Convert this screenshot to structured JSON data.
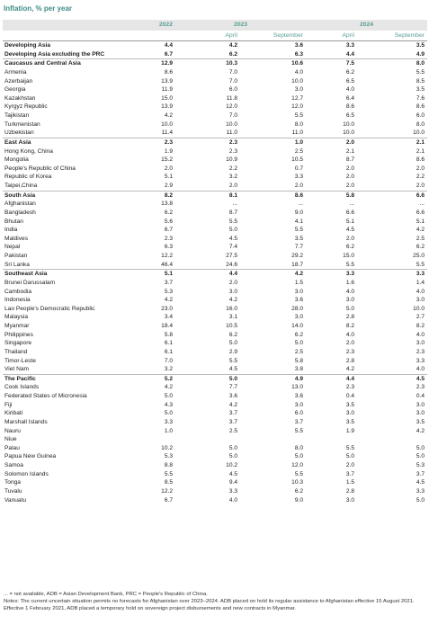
{
  "title": "Inflation, % per year",
  "header": {
    "years": [
      "2022",
      "2023",
      "2024"
    ],
    "sub": [
      "April",
      "September",
      "April",
      "September"
    ]
  },
  "aggregates": [
    {
      "name": "Developing Asia",
      "values": [
        "4.4",
        "4.2",
        "3.6",
        "3.3",
        "3.5"
      ]
    },
    {
      "name": "Developing Asia excluding the PRC",
      "values": [
        "6.7",
        "6.2",
        "6.3",
        "4.4",
        "4.9"
      ]
    }
  ],
  "sections": [
    {
      "name": "Caucasus and Central Asia",
      "values": [
        "12.9",
        "10.3",
        "10.6",
        "7.5",
        "8.0"
      ],
      "rows": [
        {
          "name": "Armenia",
          "values": [
            "8.6",
            "7.0",
            "4.0",
            "6.2",
            "5.5"
          ]
        },
        {
          "name": "Azerbaijan",
          "values": [
            "13.9",
            "7.0",
            "10.0",
            "6.5",
            "8.5"
          ]
        },
        {
          "name": "Georgia",
          "values": [
            "11.9",
            "6.0",
            "3.0",
            "4.0",
            "3.5"
          ]
        },
        {
          "name": "Kazakhstan",
          "values": [
            "15.0",
            "11.8",
            "12.7",
            "6.4",
            "7.6"
          ]
        },
        {
          "name": "Kyrgyz Republic",
          "values": [
            "13.9",
            "12.0",
            "12.0",
            "8.6",
            "8.6"
          ]
        },
        {
          "name": "Tajikistan",
          "values": [
            "4.2",
            "7.0",
            "5.5",
            "6.5",
            "6.0"
          ]
        },
        {
          "name": "Turkmenistan",
          "values": [
            "10.0",
            "10.0",
            "8.0",
            "10.0",
            "8.0"
          ]
        },
        {
          "name": "Uzbekistan",
          "values": [
            "11.4",
            "11.0",
            "11.0",
            "10.0",
            "10.0"
          ]
        }
      ]
    },
    {
      "name": "East Asia",
      "values": [
        "2.3",
        "2.3",
        "1.0",
        "2.0",
        "2.1"
      ],
      "rows": [
        {
          "name": "Hong Kong, China",
          "values": [
            "1.9",
            "2.3",
            "2.5",
            "2.1",
            "2.1"
          ]
        },
        {
          "name": "Mongolia",
          "values": [
            "15.2",
            "10.9",
            "10.5",
            "8.7",
            "8.6"
          ]
        },
        {
          "name": "People's Republic of China",
          "values": [
            "2.0",
            "2.2",
            "0.7",
            "2.0",
            "2.0"
          ]
        },
        {
          "name": "Republic of Korea",
          "values": [
            "5.1",
            "3.2",
            "3.3",
            "2.0",
            "2.2"
          ]
        },
        {
          "name": "Taipei,China",
          "values": [
            "2.9",
            "2.0",
            "2.0",
            "2.0",
            "2.0"
          ]
        }
      ]
    },
    {
      "name": "South Asia",
      "values": [
        "8.2",
        "8.1",
        "8.6",
        "5.8",
        "6.6"
      ],
      "rows": [
        {
          "name": "Afghanistan",
          "values": [
            "13.8",
            "...",
            "...",
            "...",
            "..."
          ]
        },
        {
          "name": "Bangladesh",
          "values": [
            "6.2",
            "8.7",
            "9.0",
            "6.6",
            "6.6"
          ]
        },
        {
          "name": "Bhutan",
          "values": [
            "5.6",
            "5.5",
            "4.1",
            "5.1",
            "5.1"
          ]
        },
        {
          "name": "India",
          "values": [
            "6.7",
            "5.0",
            "5.5",
            "4.5",
            "4.2"
          ]
        },
        {
          "name": "Maldives",
          "values": [
            "2.3",
            "4.5",
            "3.5",
            "2.0",
            "2.5"
          ]
        },
        {
          "name": "Nepal",
          "values": [
            "6.3",
            "7.4",
            "7.7",
            "6.2",
            "6.2"
          ]
        },
        {
          "name": "Pakistan",
          "values": [
            "12.2",
            "27.5",
            "29.2",
            "15.0",
            "25.0"
          ]
        },
        {
          "name": "Sri Lanka",
          "values": [
            "46.4",
            "24.6",
            "18.7",
            "5.5",
            "5.5"
          ]
        }
      ]
    },
    {
      "name": "Southeast Asia",
      "values": [
        "5.1",
        "4.4",
        "4.2",
        "3.3",
        "3.3"
      ],
      "rows": [
        {
          "name": "Brunei Darussalam",
          "values": [
            "3.7",
            "2.0",
            "1.5",
            "1.6",
            "1.4"
          ]
        },
        {
          "name": "Cambodia",
          "values": [
            "5.3",
            "3.0",
            "3.0",
            "4.0",
            "4.0"
          ]
        },
        {
          "name": "Indonesia",
          "values": [
            "4.2",
            "4.2",
            "3.6",
            "3.0",
            "3.0"
          ]
        },
        {
          "name": "Lao People's Democratic Republic",
          "values": [
            "23.0",
            "16.0",
            "28.0",
            "5.0",
            "10.0"
          ]
        },
        {
          "name": "Malaysia",
          "values": [
            "3.4",
            "3.1",
            "3.0",
            "2.8",
            "2.7"
          ]
        },
        {
          "name": "Myanmar",
          "values": [
            "18.4",
            "10.5",
            "14.0",
            "8.2",
            "8.2"
          ]
        },
        {
          "name": "Philippines",
          "values": [
            "5.8",
            "6.2",
            "6.2",
            "4.0",
            "4.0"
          ]
        },
        {
          "name": "Singapore",
          "values": [
            "6.1",
            "5.0",
            "5.0",
            "2.0",
            "3.0"
          ]
        },
        {
          "name": "Thailand",
          "values": [
            "6.1",
            "2.9",
            "2.5",
            "2.3",
            "2.3"
          ]
        },
        {
          "name": "Timor-Leste",
          "values": [
            "7.0",
            "5.5",
            "5.8",
            "2.8",
            "3.3"
          ]
        },
        {
          "name": "Viet Nam",
          "values": [
            "3.2",
            "4.5",
            "3.8",
            "4.2",
            "4.0"
          ]
        }
      ]
    },
    {
      "name": "The Pacific",
      "values": [
        "5.2",
        "5.0",
        "4.9",
        "4.4",
        "4.5"
      ],
      "rows": [
        {
          "name": "Cook Islands",
          "values": [
            "4.2",
            "7.7",
            "13.0",
            "2.3",
            "2.3"
          ]
        },
        {
          "name": "Federated States of Micronesia",
          "values": [
            "5.0",
            "3.6",
            "3.6",
            "0.4",
            "0.4"
          ]
        },
        {
          "name": "Fiji",
          "values": [
            "4.3",
            "4.2",
            "3.0",
            "3.5",
            "3.0"
          ]
        },
        {
          "name": "Kiribati",
          "values": [
            "5.0",
            "3.7",
            "6.0",
            "3.0",
            "3.0"
          ]
        },
        {
          "name": "Marshall Islands",
          "values": [
            "3.3",
            "3.7",
            "3.7",
            "3.5",
            "3.5"
          ]
        },
        {
          "name": "Nauru",
          "values": [
            "1.0",
            "2.5",
            "5.5",
            "1.9",
            "4.2"
          ]
        },
        {
          "name": "Niue",
          "values": [
            null,
            null,
            null,
            null,
            null
          ]
        },
        {
          "name": "Palau",
          "values": [
            "10.2",
            "5.0",
            "8.0",
            "5.5",
            "5.0"
          ]
        },
        {
          "name": "Papua New Guinea",
          "values": [
            "5.3",
            "5.0",
            "5.0",
            "5.0",
            "5.0"
          ]
        },
        {
          "name": "Samoa",
          "values": [
            "8.8",
            "10.2",
            "12.0",
            "2.0",
            "5.3"
          ]
        },
        {
          "name": "Solomon Islands",
          "values": [
            "5.5",
            "4.5",
            "5.5",
            "3.7",
            "3.7"
          ]
        },
        {
          "name": "Tonga",
          "values": [
            "8.5",
            "9.4",
            "10.3",
            "1.5",
            "4.5"
          ]
        },
        {
          "name": "Tuvalu",
          "values": [
            "12.2",
            "3.3",
            "6.2",
            "2.8",
            "3.3"
          ]
        },
        {
          "name": "Vanuatu",
          "values": [
            "6.7",
            "4.0",
            "9.0",
            "3.0",
            "5.0"
          ]
        }
      ]
    }
  ],
  "footnotes": [
    "... = not available, ADB = Asian Development Bank, PRC = People's Republic of China.",
    "Notes: The current uncertain situation permits no forecasts for Afghanistan over 2023–2024. ADB placed on hold its regular assistance to Afghanistan effective 15 August 2021. Effective 1 February 2021, ADB placed a temporary hold on sovereign project disbursements and new contracts in Myanmar."
  ]
}
